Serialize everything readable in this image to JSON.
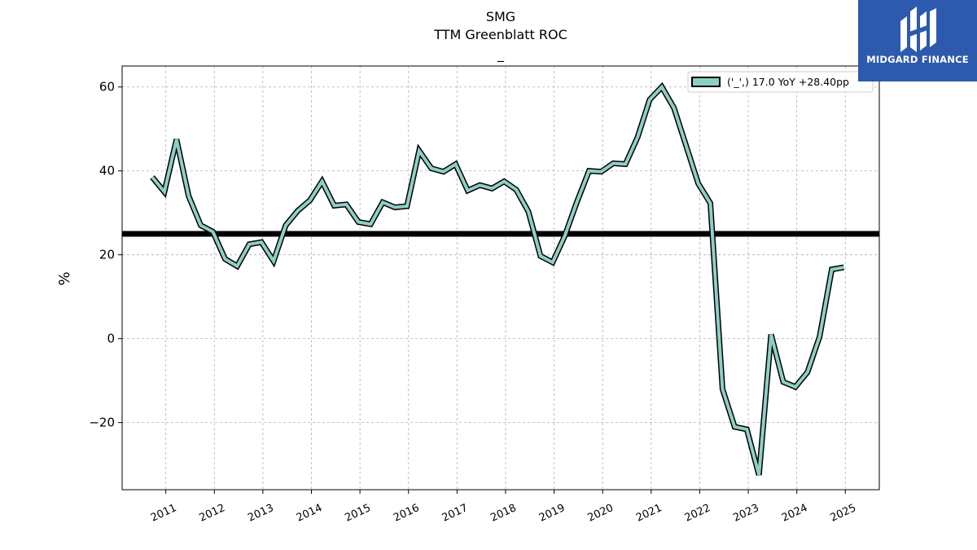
{
  "chart_data": {
    "type": "line",
    "title": "SMG",
    "subtitle": "TTM Greenblatt ROC",
    "subtitle2": "_",
    "xlabel": "",
    "ylabel": "%",
    "xlim": [
      2010.1,
      2025.7
    ],
    "ylim": [
      -36,
      65
    ],
    "x_ticks": [
      2011,
      2012,
      2013,
      2014,
      2015,
      2016,
      2017,
      2018,
      2019,
      2020,
      2021,
      2022,
      2023,
      2024,
      2025
    ],
    "y_ticks": [
      -20,
      0,
      20,
      40,
      60
    ],
    "y_tick_labels": [
      "−20",
      "0",
      "20",
      "40",
      "60"
    ],
    "grid": true,
    "legend_position": "top-right",
    "reference_line": 25,
    "series": [
      {
        "name": "('_',) 17.0 YoY +28.40pp",
        "color": "#8ecfc4",
        "x": [
          2010.72,
          2010.97,
          2011.22,
          2011.47,
          2011.72,
          2011.97,
          2012.22,
          2012.47,
          2012.72,
          2012.97,
          2013.22,
          2013.47,
          2013.72,
          2013.97,
          2014.22,
          2014.47,
          2014.72,
          2014.97,
          2015.22,
          2015.47,
          2015.72,
          2015.97,
          2016.22,
          2016.47,
          2016.72,
          2016.97,
          2017.22,
          2017.47,
          2017.72,
          2017.97,
          2018.22,
          2018.47,
          2018.72,
          2018.97,
          2019.22,
          2019.47,
          2019.72,
          2019.97,
          2020.22,
          2020.47,
          2020.72,
          2020.97,
          2021.22,
          2021.47,
          2021.72,
          2021.97,
          2022.22,
          2022.47,
          2022.72,
          2022.97,
          2023.22,
          2023.47,
          2023.72,
          2023.97,
          2024.22,
          2024.47,
          2024.72,
          2024.97
        ],
        "y": [
          38.5,
          35,
          47.5,
          34,
          27,
          25.5,
          19,
          17.3,
          22.5,
          23,
          18.5,
          27,
          30.5,
          33,
          37.5,
          31.7,
          32,
          27.8,
          27.3,
          32.5,
          31.3,
          31.6,
          44.8,
          40.6,
          39.8,
          41.6,
          35.3,
          36.6,
          35.8,
          37.5,
          35.5,
          30.3,
          19.7,
          18.2,
          24.5,
          32.6,
          40,
          39.8,
          41.8,
          41.6,
          48,
          57,
          60,
          55,
          46,
          37,
          32.3,
          -12,
          -21,
          -21.6,
          -32.5,
          1,
          -10.3,
          -11.5,
          -8,
          0.5,
          16.5,
          17
        ]
      }
    ]
  },
  "logo": {
    "text": "MIDGARD FINANCE",
    "background": "#2d5aae"
  }
}
